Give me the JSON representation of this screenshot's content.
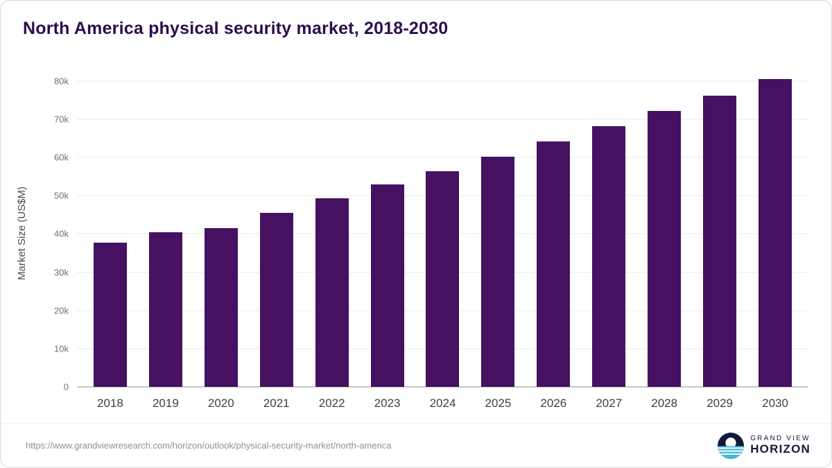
{
  "chart_data": {
    "type": "bar",
    "title": "North America physical security market, 2018-2030",
    "xlabel": "",
    "ylabel": "Market Size (US$M)",
    "categories": [
      "2018",
      "2019",
      "2020",
      "2021",
      "2022",
      "2023",
      "2024",
      "2025",
      "2026",
      "2027",
      "2028",
      "2029",
      "2030"
    ],
    "values": [
      37800,
      40400,
      41500,
      45500,
      49400,
      53000,
      56400,
      60200,
      64100,
      68200,
      72100,
      76200,
      80500
    ],
    "ylim": [
      0,
      80000
    ],
    "ytick_step": 10000,
    "ytick_labels": [
      "0",
      "10k",
      "20k",
      "30k",
      "40k",
      "50k",
      "60k",
      "70k",
      "80k"
    ],
    "grid": true,
    "legend": "none",
    "bar_color": "#451160"
  },
  "colors": {
    "title": "#2e0c4f",
    "bar": "#451160",
    "logo_navy": "#121a3a",
    "logo_teal": "#45b8d6"
  },
  "footer": {
    "source_url": "https://www.grandviewresearch.com/horizon/outlook/physical-security-market/north-america",
    "brand_line1": "GRAND VIEW",
    "brand_line2": "HORIZON"
  }
}
